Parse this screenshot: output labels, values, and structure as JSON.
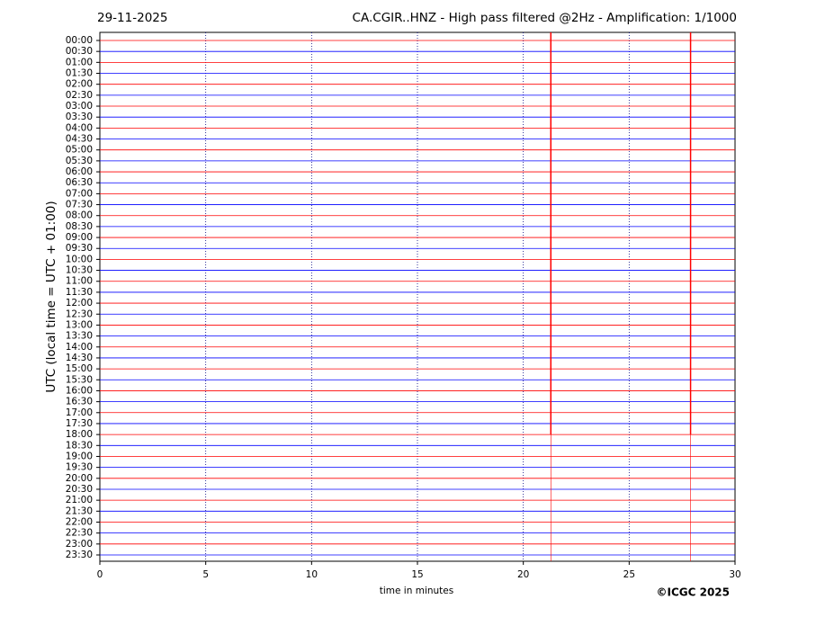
{
  "chart_data": {
    "type": "helicorder",
    "date": "29-11-2025",
    "title": "CA.CGIR..HNZ - High pass filtered @2Hz - Amplification: 1/1000",
    "y_label": "UTC (local time = UTC + 01:00)",
    "x_label": "time in minutes",
    "copyright": "©ICGC 2025",
    "categories": [
      "00:00",
      "00:30",
      "01:00",
      "01:30",
      "02:00",
      "02:30",
      "03:00",
      "03:30",
      "04:00",
      "04:30",
      "05:00",
      "05:30",
      "06:00",
      "06:30",
      "07:00",
      "07:30",
      "08:00",
      "08:30",
      "09:00",
      "09:30",
      "10:00",
      "10:30",
      "11:00",
      "11:30",
      "12:00",
      "12:30",
      "13:00",
      "13:30",
      "14:00",
      "14:30",
      "15:00",
      "15:30",
      "16:00",
      "16:30",
      "17:00",
      "17:30",
      "18:00",
      "18:30",
      "19:00",
      "19:30",
      "20:00",
      "20:30",
      "21:00",
      "21:30",
      "22:00",
      "22:30",
      "23:00",
      "23:30"
    ],
    "trace_colors": [
      "#ff0000",
      "#0000ff"
    ],
    "event_lines": [
      21.3,
      27.9
    ],
    "event_color": "#ff0000",
    "xlim": [
      0,
      30
    ],
    "xticks": [
      0,
      5,
      10,
      15,
      20,
      25,
      30
    ],
    "grid": true
  }
}
